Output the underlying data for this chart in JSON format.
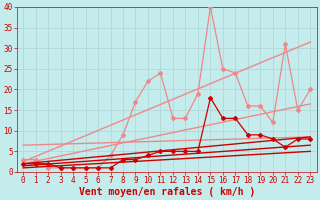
{
  "background_color": "#c4ecec",
  "grid_color": "#b0d8d8",
  "xlabel": "Vent moyen/en rafales ( km/h )",
  "xlabel_color": "#cc0000",
  "xlabel_fontsize": 7,
  "tick_color": "#cc0000",
  "tick_fontsize": 5.5,
  "xlim": [
    -0.5,
    23.5
  ],
  "ylim": [
    0,
    40
  ],
  "yticks": [
    0,
    5,
    10,
    15,
    20,
    25,
    30,
    35,
    40
  ],
  "xticks": [
    0,
    1,
    2,
    3,
    4,
    5,
    6,
    7,
    8,
    9,
    10,
    11,
    12,
    13,
    14,
    15,
    16,
    17,
    18,
    19,
    20,
    21,
    22,
    23
  ],
  "series": [
    {
      "x": [
        0,
        1,
        2,
        3,
        4,
        5,
        6,
        7,
        8,
        9,
        10,
        11,
        12,
        13,
        14,
        15,
        16,
        17,
        18,
        19,
        20,
        21,
        22,
        23
      ],
      "y": [
        2,
        2,
        2,
        1,
        1,
        1,
        1,
        1,
        3,
        3,
        4,
        5,
        5,
        5,
        5,
        18,
        13,
        13,
        9,
        9,
        8,
        6,
        8,
        8
      ],
      "color": "#cc0000",
      "linewidth": 0.9,
      "marker": "D",
      "markersize": 2.0,
      "zorder": 10
    },
    {
      "x": [
        0,
        23
      ],
      "y": [
        1.0,
        5.0
      ],
      "color": "#cc0000",
      "linewidth": 1.0,
      "marker": null,
      "markersize": 0,
      "zorder": 6
    },
    {
      "x": [
        0,
        23
      ],
      "y": [
        1.5,
        6.5
      ],
      "color": "#cc0000",
      "linewidth": 1.0,
      "marker": null,
      "markersize": 0,
      "zorder": 6
    },
    {
      "x": [
        0,
        23
      ],
      "y": [
        2.0,
        8.5
      ],
      "color": "#cc0000",
      "linewidth": 1.0,
      "marker": null,
      "markersize": 0,
      "zorder": 6
    },
    {
      "x": [
        0,
        1,
        2,
        3,
        4,
        5,
        6,
        7,
        8,
        9,
        10,
        11,
        12,
        13,
        14,
        15,
        16,
        17,
        18,
        19,
        20,
        21,
        22,
        23
      ],
      "y": [
        3,
        3,
        1,
        1,
        1,
        1,
        1,
        4,
        9,
        17,
        22,
        24,
        13,
        13,
        19,
        40,
        25,
        24,
        16,
        16,
        12,
        31,
        15,
        20
      ],
      "color": "#ee8888",
      "linewidth": 0.9,
      "marker": "D",
      "markersize": 2.0,
      "zorder": 5
    },
    {
      "x": [
        0,
        23
      ],
      "y": [
        6.5,
        8.5
      ],
      "color": "#ee8888",
      "linewidth": 1.0,
      "marker": null,
      "markersize": 0,
      "zorder": 4
    },
    {
      "x": [
        0,
        23
      ],
      "y": [
        2.0,
        16.5
      ],
      "color": "#ee8888",
      "linewidth": 1.0,
      "marker": null,
      "markersize": 0,
      "zorder": 4
    },
    {
      "x": [
        0,
        23
      ],
      "y": [
        2.5,
        31.5
      ],
      "color": "#ee8888",
      "linewidth": 1.0,
      "marker": null,
      "markersize": 0,
      "zorder": 4
    }
  ]
}
